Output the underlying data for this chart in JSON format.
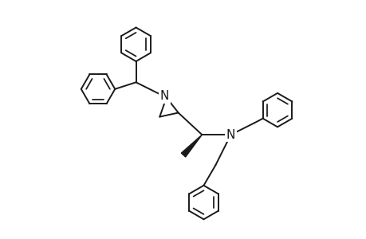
{
  "bg": "#ffffff",
  "lc": "#1a1a1a",
  "lw": 1.4,
  "fs": 10,
  "figsize": [
    4.6,
    3.0
  ],
  "dpi": 100,
  "xlim": [
    -3.2,
    4.8
  ],
  "ylim": [
    -3.5,
    3.5
  ],
  "ring_r": 0.5
}
